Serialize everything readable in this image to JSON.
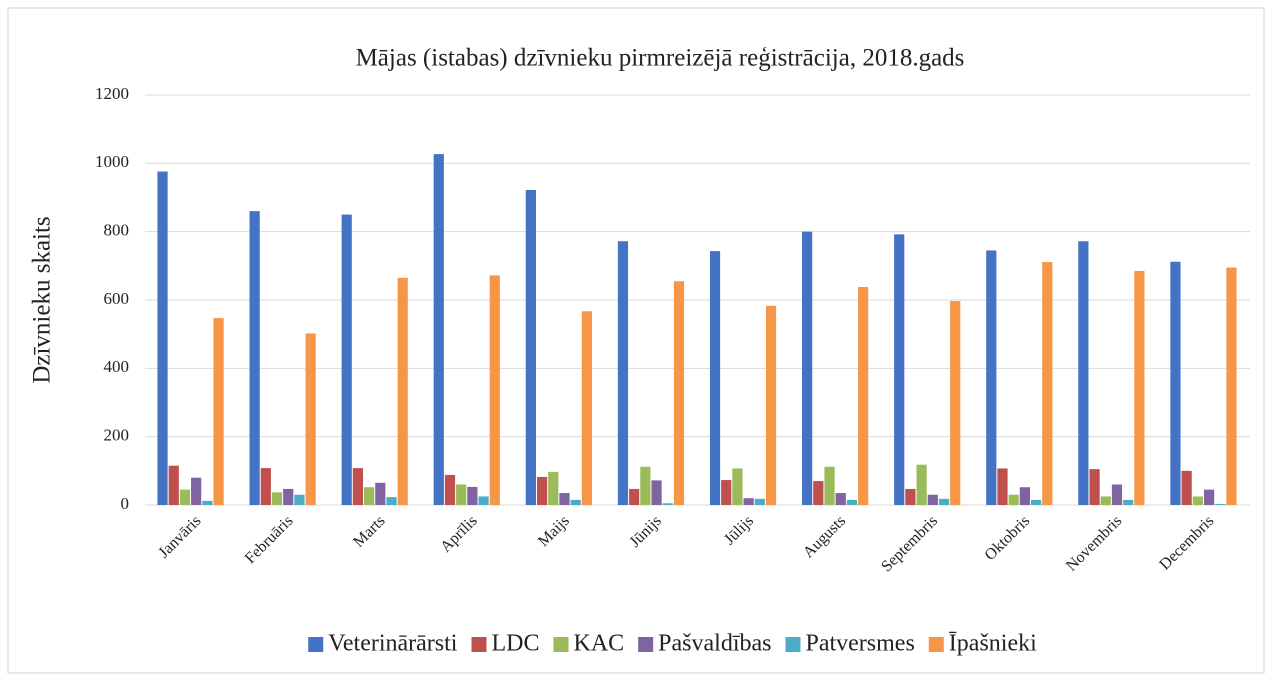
{
  "chart_data": {
    "type": "bar",
    "title": "Mājas (istabas) dzīvnieku pirmreizējā reģistrācija, 2018.gads",
    "ylabel": "Dzīvnieku skaits",
    "categories": [
      "Janvāris",
      "Februāris",
      "Marts",
      "Aprīlis",
      "Maijs",
      "Jūnijs",
      "Jūlijs",
      "Augusts",
      "Septembris",
      "Oktobris",
      "Novembris",
      "Decembris"
    ],
    "series": [
      {
        "name": "Veterinārārsti",
        "color": "#4472c4",
        "values": [
          976,
          860,
          850,
          1027,
          922,
          772,
          743,
          800,
          792,
          745,
          772,
          712
        ]
      },
      {
        "name": "LDC",
        "color": "#c0504d",
        "values": [
          115,
          108,
          108,
          88,
          82,
          47,
          73,
          70,
          47,
          107,
          105,
          100
        ]
      },
      {
        "name": "KAC",
        "color": "#9bbb59",
        "values": [
          45,
          37,
          52,
          60,
          97,
          112,
          107,
          112,
          118,
          30,
          25,
          25
        ]
      },
      {
        "name": "Pašvaldības",
        "color": "#8064a2",
        "values": [
          80,
          47,
          65,
          53,
          35,
          72,
          20,
          35,
          30,
          52,
          60,
          45
        ]
      },
      {
        "name": "Patversmes",
        "color": "#4bacc6",
        "values": [
          12,
          30,
          23,
          25,
          15,
          5,
          18,
          15,
          18,
          15,
          15,
          3
        ]
      },
      {
        "name": "Īpašnieki",
        "color": "#f79646",
        "values": [
          547,
          502,
          665,
          672,
          567,
          655,
          583,
          638,
          597,
          711,
          685,
          695
        ]
      }
    ],
    "ylim": [
      0,
      1200
    ],
    "yticks": [
      0,
      200,
      400,
      600,
      800,
      1000,
      1200
    ],
    "grid": true,
    "legend": "bottom"
  }
}
